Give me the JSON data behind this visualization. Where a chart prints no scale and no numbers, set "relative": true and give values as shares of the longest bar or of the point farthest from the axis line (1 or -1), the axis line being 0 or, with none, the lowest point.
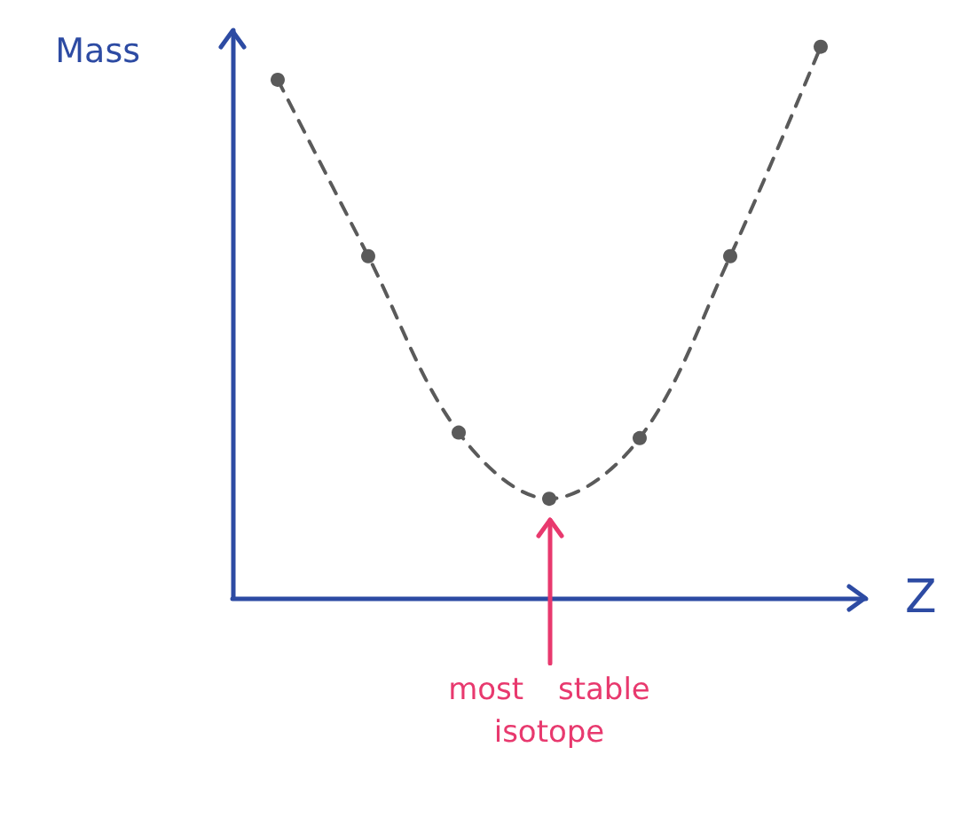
{
  "chart_data": {
    "type": "line",
    "xlabel": "Z",
    "ylabel": "Mass",
    "relative": true,
    "categories": [
      null,
      null,
      null,
      null,
      null,
      null,
      null
    ],
    "values": [
      0.94,
      0.62,
      0.3,
      0.18,
      0.29,
      0.62,
      1
    ],
    "color": "#5a5a5a",
    "marker": "circle",
    "line_style": "dashed",
    "annotations": [
      "most stable isotope"
    ]
  }
}
